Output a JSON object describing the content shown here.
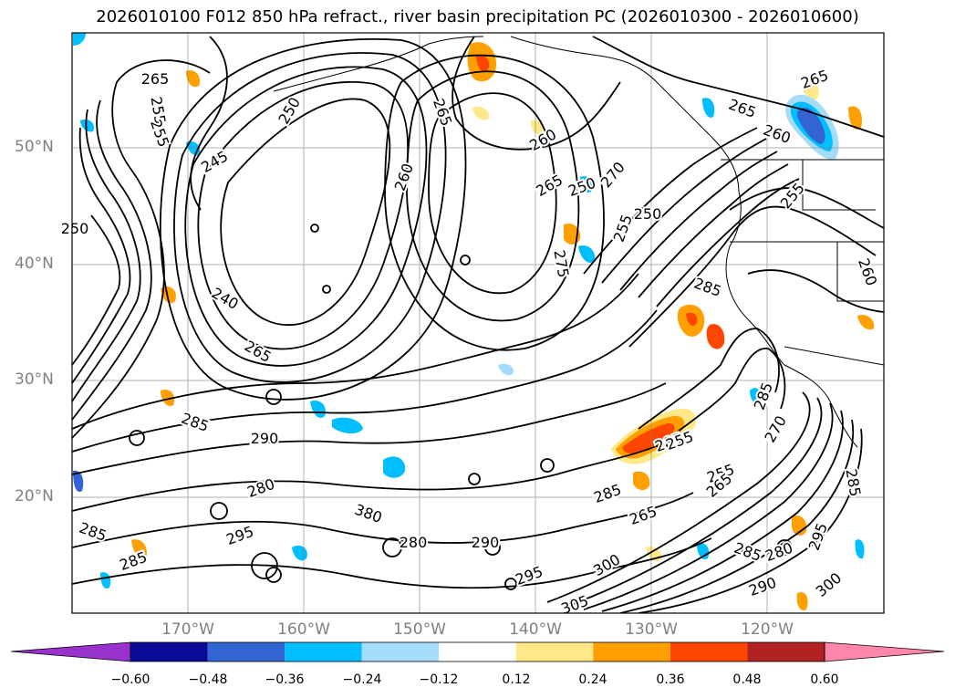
{
  "title": "2026010100 F012 850 hPa refract., river basin precipitation PC (2026010300 - 2026010600)",
  "map": {
    "lat_labels": [
      "50°N",
      "40°N",
      "30°N",
      "20°N"
    ],
    "lon_labels": [
      "170°W",
      "160°W",
      "150°W",
      "140°W",
      "130°W",
      "120°W"
    ],
    "contour_labels": [
      "265",
      "255",
      "255",
      "250",
      "245",
      "250",
      "260",
      "260",
      "265",
      "250",
      "240",
      "265",
      "285",
      "290",
      "280",
      "295",
      "380",
      "280",
      "290",
      "295",
      "300",
      "305",
      "285",
      "270",
      "265",
      "275",
      "250",
      "255",
      "285",
      "265",
      "260",
      "265",
      "255",
      "260",
      "265",
      "285",
      "255",
      "255",
      "285",
      "270",
      "285",
      "265",
      "290",
      "285",
      "280",
      "285",
      "295",
      "300",
      "285"
    ]
  },
  "colorbar": {
    "ticks": [
      "−0.60",
      "−0.48",
      "−0.36",
      "−0.24",
      "−0.12",
      "0.12",
      "0.24",
      "0.36",
      "0.48",
      "0.60"
    ],
    "under_color": "#9932CC",
    "over_color": "#FF88AA",
    "colors": [
      "#0A0A96",
      "#3264D2",
      "#00BEFF",
      "#A5DCFA",
      "#FFFFFF",
      "#FFE887",
      "#FFA000",
      "#FF4600",
      "#B22222"
    ]
  },
  "colors": {
    "axis_label": "#808080",
    "contour": "#000000",
    "grid": "#808080"
  }
}
